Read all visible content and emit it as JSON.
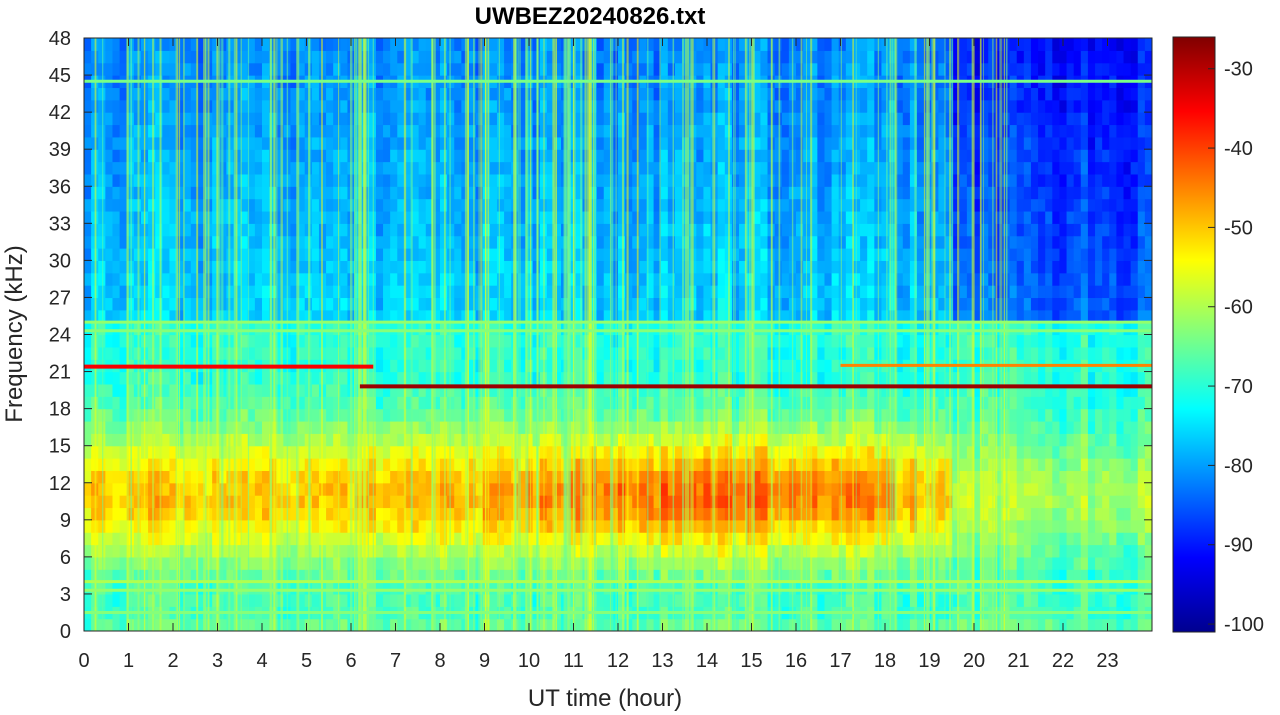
{
  "chart_data": {
    "type": "heatmap",
    "title": "UWBEZ20240826.txt",
    "xlabel": "UT time (hour)",
    "ylabel": "Frequency (kHz)",
    "xlim": [
      0,
      24
    ],
    "ylim": [
      0,
      48
    ],
    "x_ticks": [
      "0",
      "1",
      "2",
      "3",
      "4",
      "5",
      "6",
      "7",
      "8",
      "9",
      "10",
      "11",
      "12",
      "13",
      "14",
      "15",
      "16",
      "17",
      "18",
      "19",
      "20",
      "21",
      "22",
      "23"
    ],
    "y_ticks": [
      "0",
      "3",
      "6",
      "9",
      "12",
      "15",
      "18",
      "21",
      "24",
      "27",
      "30",
      "33",
      "36",
      "39",
      "42",
      "45",
      "48"
    ],
    "colorbar": {
      "colormap": "jet",
      "range": [
        -101,
        -26
      ],
      "ticks": [
        "-100",
        "-90",
        "-80",
        "-70",
        "-60",
        "-50",
        "-40",
        "-30"
      ]
    },
    "features": [
      {
        "kind": "horizontal-line",
        "freq_khz": 21.4,
        "t_start": 0,
        "t_end": 6.5,
        "level": -35
      },
      {
        "kind": "horizontal-line",
        "freq_khz": 19.8,
        "t_start": 6.2,
        "t_end": 24,
        "level": -28
      },
      {
        "kind": "horizontal-line",
        "freq_khz": 21.5,
        "t_start": 17,
        "t_end": 24,
        "level": -45
      },
      {
        "kind": "horizontal-line",
        "freq_khz": 25.0,
        "t_start": 0,
        "t_end": 24,
        "level": -62
      },
      {
        "kind": "horizontal-line",
        "freq_khz": 24.3,
        "t_start": 0,
        "t_end": 24,
        "level": -63
      },
      {
        "kind": "horizontal-line",
        "freq_khz": 44.5,
        "t_start": 0,
        "t_end": 24,
        "level": -64
      },
      {
        "kind": "horizontal-line",
        "freq_khz": 4.0,
        "t_start": 0,
        "t_end": 24,
        "level": -60
      },
      {
        "kind": "horizontal-line",
        "freq_khz": 3.3,
        "t_start": 0,
        "t_end": 24,
        "level": -62
      },
      {
        "kind": "horizontal-line",
        "freq_khz": 1.5,
        "t_start": 0,
        "t_end": 24,
        "level": -63
      },
      {
        "kind": "broadband-region",
        "freq_khz": [
          4,
          18
        ],
        "t_start": 0,
        "t_end": 19.5,
        "peak_level": -42
      },
      {
        "kind": "quiet-region",
        "freq_khz": [
          25,
          48
        ],
        "t_start": 19.5,
        "t_end": 24,
        "level": -88
      }
    ]
  }
}
